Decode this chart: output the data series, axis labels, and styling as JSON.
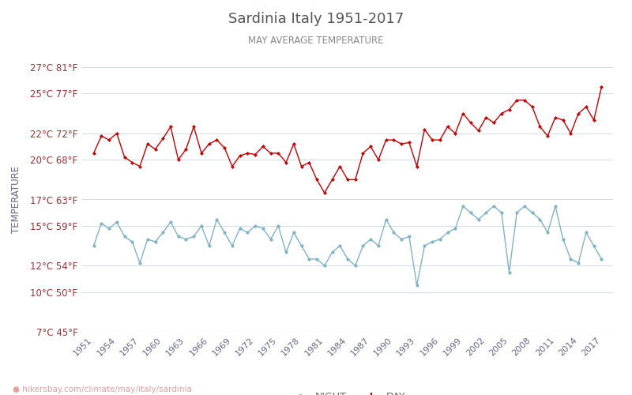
{
  "title": "Sardinia Italy 1951-2017",
  "subtitle": "MAY AVERAGE TEMPERATURE",
  "ylabel": "TEMPERATURE",
  "xlabel_url": "hikersbay.com/climate/may/italy/sardinia",
  "years": [
    1951,
    1952,
    1953,
    1954,
    1955,
    1956,
    1957,
    1958,
    1959,
    1960,
    1961,
    1962,
    1963,
    1964,
    1965,
    1966,
    1967,
    1968,
    1969,
    1970,
    1971,
    1972,
    1973,
    1974,
    1975,
    1976,
    1977,
    1978,
    1979,
    1980,
    1981,
    1982,
    1983,
    1984,
    1985,
    1986,
    1987,
    1988,
    1989,
    1990,
    1991,
    1992,
    1993,
    1994,
    1995,
    1996,
    1997,
    1998,
    1999,
    2000,
    2001,
    2002,
    2003,
    2004,
    2005,
    2006,
    2007,
    2008,
    2009,
    2010,
    2011,
    2012,
    2013,
    2014,
    2015,
    2016,
    2017
  ],
  "day_temps": [
    20.5,
    21.8,
    21.5,
    22.0,
    20.2,
    19.8,
    19.5,
    21.2,
    20.8,
    21.6,
    22.5,
    20.0,
    20.8,
    22.5,
    20.5,
    21.2,
    21.5,
    20.9,
    19.5,
    20.3,
    20.5,
    20.4,
    21.0,
    20.5,
    20.5,
    19.8,
    21.2,
    19.5,
    19.8,
    18.5,
    17.5,
    18.5,
    19.5,
    18.5,
    18.5,
    20.5,
    21.0,
    20.0,
    21.5,
    21.5,
    21.2,
    21.3,
    19.5,
    22.3,
    21.5,
    21.5,
    22.5,
    22.0,
    23.5,
    22.8,
    22.2,
    23.2,
    22.8,
    23.5,
    23.8,
    24.5,
    24.5,
    24.0,
    22.5,
    21.8,
    23.2,
    23.0,
    22.0,
    23.5,
    24.0,
    23.0,
    25.5
  ],
  "night_temps": [
    13.5,
    15.2,
    14.8,
    15.3,
    14.2,
    13.8,
    12.2,
    14.0,
    13.8,
    14.5,
    15.3,
    14.2,
    14.0,
    14.2,
    15.0,
    13.5,
    15.5,
    14.5,
    13.5,
    14.8,
    14.5,
    15.0,
    14.8,
    14.0,
    15.0,
    13.0,
    14.5,
    13.5,
    12.5,
    12.5,
    12.0,
    13.0,
    13.5,
    12.5,
    12.0,
    13.5,
    14.0,
    13.5,
    15.5,
    14.5,
    14.0,
    14.2,
    10.5,
    13.5,
    13.8,
    14.0,
    14.5,
    14.8,
    16.5,
    16.0,
    15.5,
    16.0,
    16.5,
    16.0,
    11.5,
    16.0,
    16.5,
    16.0,
    15.5,
    14.5,
    16.5,
    14.0,
    12.5,
    12.2,
    14.5,
    13.5,
    12.5
  ],
  "yticks_c": [
    7,
    10,
    12,
    15,
    17,
    20,
    22,
    25,
    27
  ],
  "yticks_f": [
    45,
    50,
    54,
    59,
    63,
    68,
    72,
    77,
    81
  ],
  "xticks": [
    1951,
    1954,
    1957,
    1960,
    1963,
    1966,
    1969,
    1972,
    1975,
    1978,
    1981,
    1984,
    1987,
    1990,
    1993,
    1996,
    1999,
    2002,
    2005,
    2008,
    2011,
    2014,
    2017
  ],
  "day_color": "#cc0000",
  "night_color": "#7fb3c8",
  "grid_color": "#d4dde6",
  "title_color": "#555555",
  "subtitle_color": "#888888",
  "ylabel_color": "#666688",
  "ytick_color": "#993333",
  "xtick_color": "#666688",
  "background_color": "#ffffff",
  "legend_night_color": "#7fb3c8",
  "legend_day_color": "#cc0000",
  "url_color": "#e8a0a0"
}
